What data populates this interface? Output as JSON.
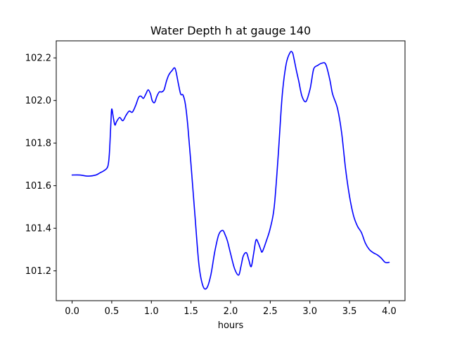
{
  "chart_data": {
    "type": "line",
    "title": "Water Depth h at gauge 140",
    "xlabel": "hours",
    "ylabel": "",
    "xlim": [
      -0.2,
      4.2
    ],
    "ylim": [
      101.06,
      102.28
    ],
    "xticks": [
      0.0,
      0.5,
      1.0,
      1.5,
      2.0,
      2.5,
      3.0,
      3.5,
      4.0
    ],
    "xtick_labels": [
      "0.0",
      "0.5",
      "1.0",
      "1.5",
      "2.0",
      "2.5",
      "3.0",
      "3.5",
      "4.0"
    ],
    "yticks": [
      101.2,
      101.4,
      101.6,
      101.8,
      102.0,
      102.2
    ],
    "ytick_labels": [
      "101.2",
      "101.4",
      "101.6",
      "101.8",
      "102.0",
      "102.2"
    ],
    "grid": false,
    "legend": "none",
    "series": [
      {
        "color": "#0000ff",
        "x": [
          0.0,
          0.1,
          0.2,
          0.3,
          0.35,
          0.4,
          0.45,
          0.47,
          0.49,
          0.5,
          0.52,
          0.54,
          0.56,
          0.6,
          0.64,
          0.68,
          0.72,
          0.76,
          0.8,
          0.84,
          0.87,
          0.9,
          0.93,
          0.96,
          0.99,
          1.01,
          1.04,
          1.07,
          1.1,
          1.13,
          1.16,
          1.19,
          1.22,
          1.26,
          1.3,
          1.34,
          1.37,
          1.4,
          1.43,
          1.46,
          1.5,
          1.55,
          1.6,
          1.65,
          1.7,
          1.75,
          1.8,
          1.85,
          1.9,
          1.93,
          1.96,
          2.0,
          2.05,
          2.1,
          2.13,
          2.16,
          2.2,
          2.23,
          2.26,
          2.29,
          2.32,
          2.35,
          2.38,
          2.4,
          2.45,
          2.5,
          2.55,
          2.6,
          2.65,
          2.7,
          2.75,
          2.78,
          2.8,
          2.83,
          2.86,
          2.9,
          2.95,
          3.0,
          3.02,
          3.05,
          3.1,
          3.15,
          3.2,
          3.25,
          3.28,
          3.3,
          3.35,
          3.4,
          3.45,
          3.5,
          3.55,
          3.6,
          3.65,
          3.7,
          3.75,
          3.8,
          3.85,
          3.9,
          3.95,
          4.0
        ],
        "y": [
          101.65,
          101.65,
          101.645,
          101.65,
          101.66,
          101.67,
          101.69,
          101.75,
          101.9,
          101.96,
          101.92,
          101.885,
          101.9,
          101.92,
          101.905,
          101.93,
          101.95,
          101.945,
          101.975,
          102.015,
          102.02,
          102.01,
          102.03,
          102.05,
          102.03,
          102.0,
          101.99,
          102.02,
          102.04,
          102.04,
          102.05,
          102.09,
          102.12,
          102.14,
          102.15,
          102.08,
          102.03,
          102.025,
          101.98,
          101.88,
          101.7,
          101.46,
          101.23,
          101.13,
          101.12,
          101.18,
          101.29,
          101.37,
          101.39,
          101.37,
          101.34,
          101.28,
          101.21,
          101.18,
          101.22,
          101.27,
          101.285,
          101.25,
          101.22,
          101.28,
          101.345,
          101.33,
          101.3,
          101.29,
          101.34,
          101.4,
          101.5,
          101.74,
          102.02,
          102.17,
          102.225,
          102.225,
          102.195,
          102.14,
          102.09,
          102.02,
          101.995,
          102.05,
          102.09,
          102.15,
          102.165,
          102.175,
          102.17,
          102.1,
          102.04,
          102.015,
          101.96,
          101.85,
          101.68,
          101.55,
          101.46,
          101.41,
          101.38,
          101.33,
          101.3,
          101.285,
          101.275,
          101.26,
          101.24,
          101.24
        ]
      }
    ]
  }
}
